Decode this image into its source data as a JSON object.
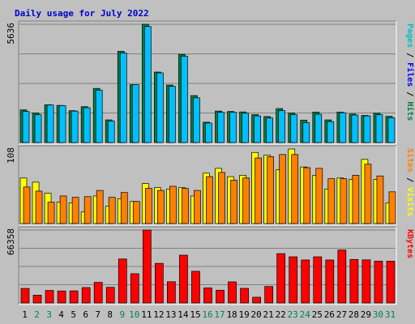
{
  "chart_data": {
    "type": "bar",
    "title": "Daily usage for July 2022",
    "categories": [
      "1",
      "2",
      "3",
      "4",
      "5",
      "6",
      "7",
      "8",
      "9",
      "10",
      "11",
      "12",
      "13",
      "14",
      "15",
      "16",
      "17",
      "18",
      "19",
      "20",
      "21",
      "22",
      "23",
      "24",
      "25",
      "26",
      "27",
      "28",
      "29",
      "30",
      "31"
    ],
    "weekend_days": [
      "2",
      "3",
      "9",
      "10",
      "16",
      "17",
      "23",
      "24",
      "30",
      "31"
    ],
    "colors": {
      "background": "#c0c0c0",
      "hits": "#008040",
      "files": "#00c0ff",
      "sites": "#ff8000",
      "visits": "#ffff00",
      "kbytes": "#ff0000",
      "title": "#0000cc",
      "weekday_label": "#000000",
      "weekend_label": "#00805c"
    },
    "panels": [
      {
        "name": "hits_files",
        "ymax_label": "5636",
        "ymax": 5636,
        "right_label": [
          {
            "text": "Pages",
            "color": "#00c0c0"
          },
          {
            "text": " / ",
            "color": "#000000"
          },
          {
            "text": "Files",
            "color": "#0000ff"
          },
          {
            "text": " / ",
            "color": "#000000"
          },
          {
            "text": "Hits",
            "color": "#008040"
          }
        ],
        "series": [
          {
            "name": "Hits",
            "values": [
              1560,
              1410,
              1800,
              1770,
              1520,
              1710,
              2580,
              1080,
              4350,
              2760,
              5636,
              3360,
              2740,
              4200,
              2240,
              970,
              1500,
              1480,
              1460,
              1330,
              1240,
              1620,
              1410,
              1070,
              1450,
              1080,
              1450,
              1360,
              1290,
              1400,
              1250
            ]
          },
          {
            "name": "Files",
            "values": [
              1480,
              1330,
              1790,
              1760,
              1500,
              1660,
              2500,
              1030,
              4270,
              2760,
              5530,
              3320,
              2680,
              4120,
              2130,
              930,
              1440,
              1440,
              1400,
              1270,
              1170,
              1520,
              1330,
              950,
              1350,
              1000,
              1420,
              1310,
              1270,
              1330,
              1180
            ]
          }
        ]
      },
      {
        "name": "sites_visits",
        "ymax_label": "108",
        "ymax": 108,
        "right_label": [
          {
            "text": "Sites",
            "color": "#ff8000"
          },
          {
            "text": " / ",
            "color": "#000000"
          },
          {
            "text": "Visits",
            "color": "#ffff00"
          }
        ],
        "series": [
          {
            "name": "Visits",
            "values": [
              66,
              60,
              44,
              31,
              30,
              17,
              40,
              25,
              36,
              32,
              58,
              52,
              50,
              52,
              40,
              73,
              80,
              68,
              70,
              103,
              99,
              78,
              108,
              82,
              70,
              50,
              66,
              64,
              93,
              64,
              30
            ]
          },
          {
            "name": "Sites",
            "values": [
              53,
              47,
              31,
              40,
              38,
              39,
              48,
              38,
              45,
              32,
              51,
              48,
              54,
              51,
              48,
              68,
              74,
              63,
              66,
              95,
              97,
              100,
              100,
              81,
              80,
              65,
              65,
              70,
              86,
              69,
              46
            ]
          }
        ]
      },
      {
        "name": "kbytes",
        "ymax_label": "66358",
        "ymax": 66358,
        "right_label": [
          {
            "text": "KBytes",
            "color": "#ff0000"
          }
        ],
        "series": [
          {
            "name": "KBytes",
            "values": [
              13200,
              7100,
              11400,
              10900,
              11000,
              14000,
              18700,
              14200,
              40000,
              26600,
              66358,
              36000,
              19300,
              43500,
              28800,
              13700,
              11600,
              19200,
              13300,
              5200,
              15000,
              44900,
              42000,
              39100,
              42000,
              39100,
              48200,
              39600,
              39200,
              38000,
              38000
            ]
          }
        ]
      }
    ]
  }
}
